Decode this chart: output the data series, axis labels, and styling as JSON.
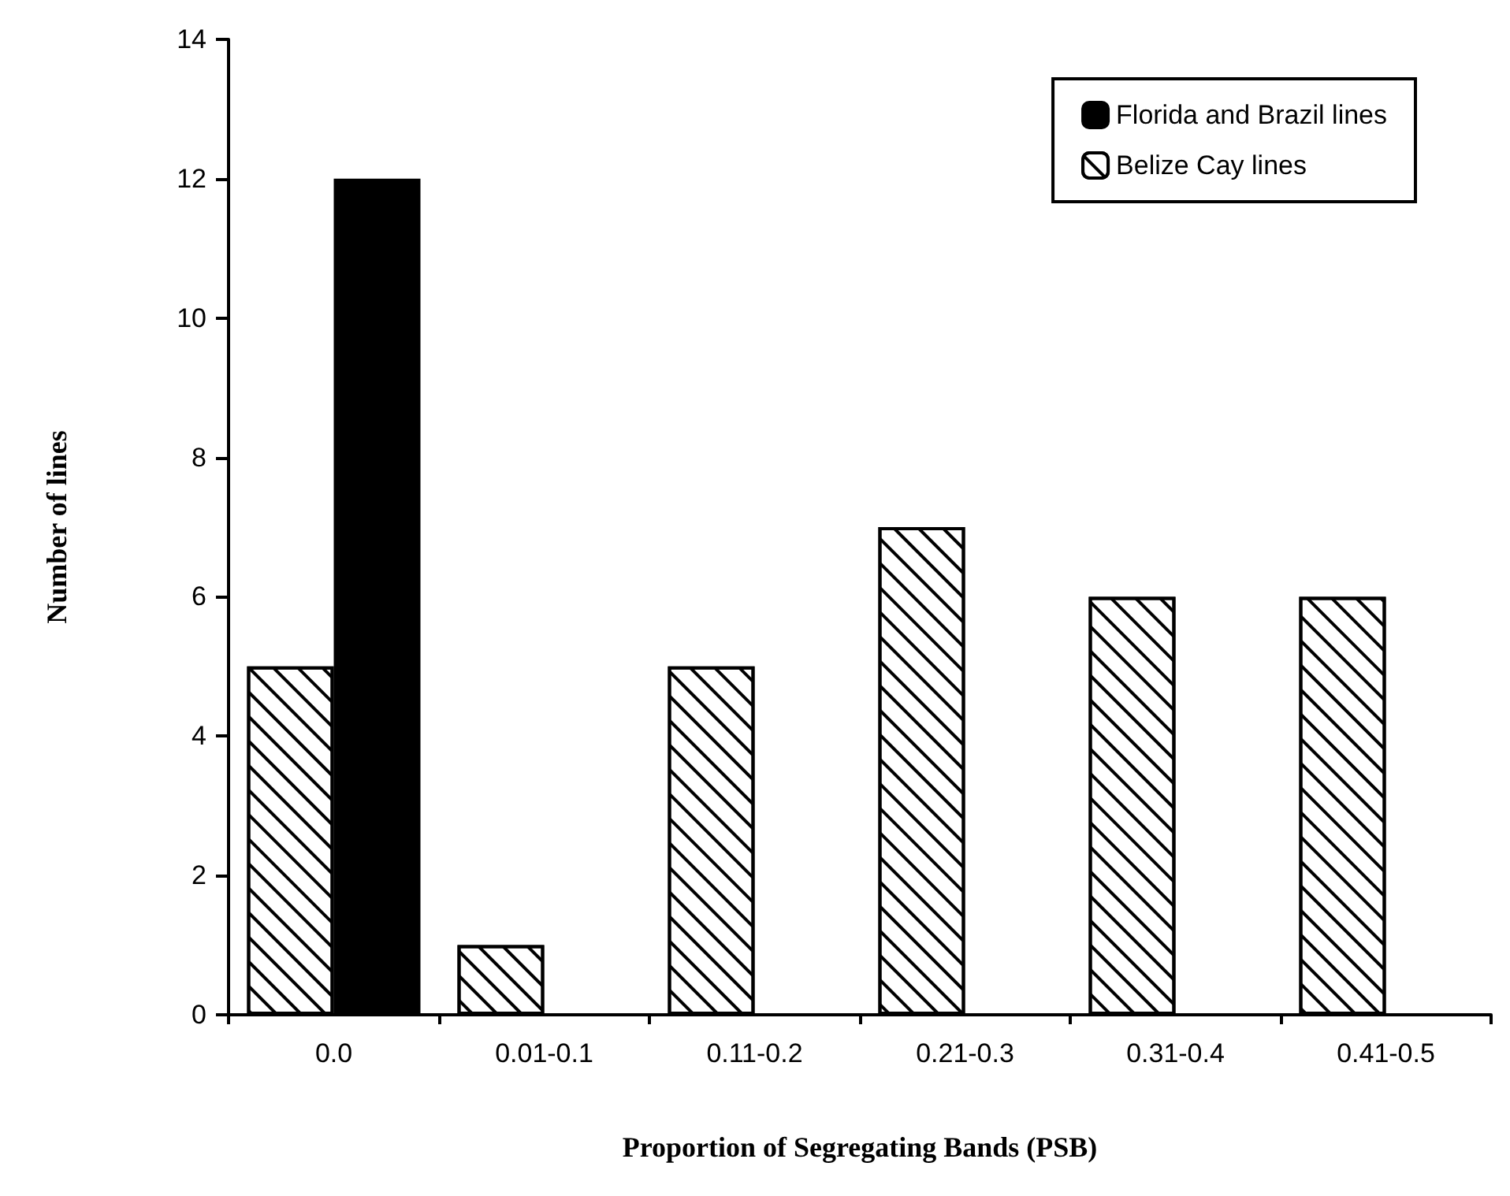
{
  "chart_data": {
    "type": "bar",
    "xlabel": "Proportion of Segregating Bands (PSB)",
    "ylabel": "Number of lines",
    "categories": [
      "0.0",
      "0.01-0.1",
      "0.11-0.2",
      "0.21-0.3",
      "0.31-0.4",
      "0.41-0.5"
    ],
    "series": [
      {
        "name": "Belize Cay lines",
        "color": "#ffffff",
        "values": [
          5,
          1,
          5,
          7,
          6,
          6
        ]
      },
      {
        "name": "Florida and Brazil lines",
        "color": "#000000",
        "values": [
          12,
          null,
          null,
          null,
          null,
          null
        ]
      }
    ],
    "ylim": [
      0,
      14
    ],
    "yticks": [
      0,
      2,
      4,
      6,
      8,
      10,
      12,
      14
    ],
    "grid": false,
    "legend": "top right"
  }
}
